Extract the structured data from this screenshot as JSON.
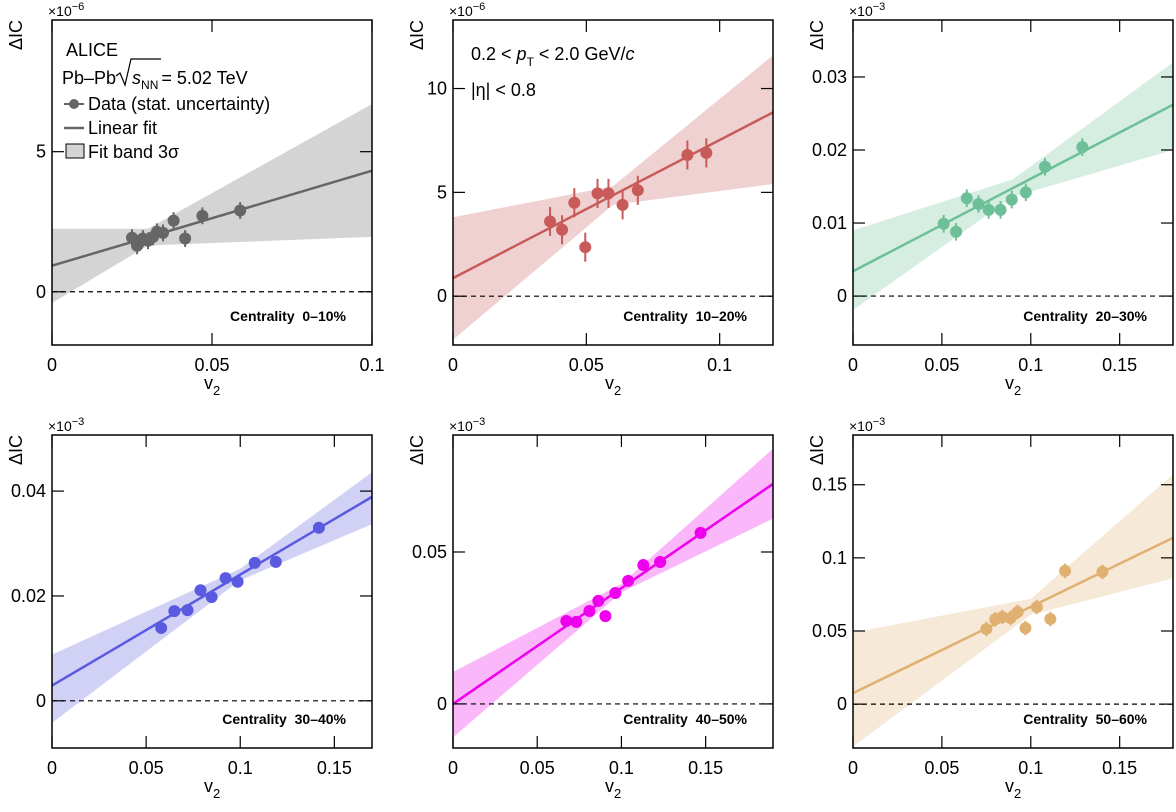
{
  "chart_data": [
    {
      "type": "scatter",
      "ylabel": "ΔIC",
      "xlabel": "v",
      "xlabel_sub": "2",
      "multiplier": {
        "base": "×10",
        "exponent": "−6"
      },
      "centrality": "Centrality  0–10%",
      "annotations": {
        "experiment": "ALICE",
        "system": "Pb–Pb",
        "energy_symbol": "s",
        "energy_sub": "NN",
        "energy_value": "= 5.02 TeV"
      },
      "xlim": [
        0,
        0.1
      ],
      "ylim": [
        -1.9,
        9.7
      ],
      "xticks": [
        0,
        0.05,
        0.1
      ],
      "yticks": [
        0,
        5
      ],
      "series": [
        {
          "name": "Data (stat. uncertainty)",
          "color": "#666666",
          "x": [
            0.025,
            0.0266,
            0.0284,
            0.03,
            0.0316,
            0.0328,
            0.0347,
            0.038,
            0.0416,
            0.047,
            0.0588
          ],
          "values": [
            1.93,
            1.64,
            1.9,
            1.82,
            1.96,
            2.14,
            2.1,
            2.54,
            1.9,
            2.71,
            2.9
          ],
          "errors": [
            0.3,
            0.3,
            0.3,
            0.3,
            0.3,
            0.3,
            0.3,
            0.3,
            0.3,
            0.3,
            0.3
          ]
        },
        {
          "name": "Linear fit",
          "color": "#666666",
          "x": [
            0,
            0.1
          ],
          "values": [
            0.93,
            4.32
          ]
        },
        {
          "name": "Fit band 3σ",
          "color": "#666666",
          "x": [
            0,
            0.03,
            0.1
          ],
          "lower": [
            -0.4,
            1.65,
            1.96
          ],
          "upper": [
            2.25,
            2.25,
            6.7
          ]
        }
      ]
    },
    {
      "type": "scatter",
      "ylabel": "ΔIC",
      "xlabel": "v",
      "xlabel_sub": "2",
      "multiplier": {
        "base": "×10",
        "exponent": "−6"
      },
      "centrality": "Centrality  10–20%",
      "annotations": {
        "pt_a": "0.2 < ",
        "pt_p": "p",
        "pt_sub": "T",
        "pt_b": " < 2.0 GeV/",
        "pt_c": "c",
        "eta": "|η| < 0.8"
      },
      "xlim": [
        0,
        0.12
      ],
      "ylim": [
        -2.35,
        13.3
      ],
      "xticks": [
        0,
        0.05,
        0.1
      ],
      "yticks": [
        0,
        5,
        10
      ],
      "series": [
        {
          "color": "#c85a5a",
          "x": [
            0.0364,
            0.0409,
            0.0455,
            0.0496,
            0.0542,
            0.0583,
            0.0636,
            0.0693,
            0.0879,
            0.095
          ],
          "values": [
            3.6,
            3.2,
            4.5,
            2.36,
            4.95,
            4.95,
            4.4,
            5.1,
            6.8,
            6.9
          ],
          "errors": [
            0.7,
            0.7,
            0.7,
            0.7,
            0.7,
            0.7,
            0.7,
            0.7,
            0.7,
            0.7
          ]
        },
        {
          "color": "#c85a5a",
          "x": [
            0,
            0.12
          ],
          "values": [
            0.87,
            8.85
          ]
        },
        {
          "color": "#c85a5a",
          "x": [
            0,
            0.06,
            0.12
          ],
          "lower": [
            -2.1,
            4.4,
            5.4
          ],
          "upper": [
            3.8,
            5.3,
            11.6
          ]
        }
      ]
    },
    {
      "type": "scatter",
      "ylabel": "ΔIC",
      "xlabel": "v",
      "xlabel_sub": "2",
      "multiplier": {
        "base": "×10",
        "exponent": "−3"
      },
      "centrality": "Centrality  20–30%",
      "xlim": [
        0,
        0.18
      ],
      "ylim": [
        -0.0067,
        0.0378
      ],
      "xticks": [
        0,
        0.05,
        0.1,
        0.15
      ],
      "yticks": [
        0,
        0.01,
        0.02,
        0.03
      ],
      "series": [
        {
          "color": "#6cbf96",
          "x": [
            0.051,
            0.058,
            0.064,
            0.0706,
            0.0763,
            0.083,
            0.0893,
            0.0972,
            0.108,
            0.129
          ],
          "values": [
            0.0099,
            0.0088,
            0.0134,
            0.0126,
            0.0118,
            0.0118,
            0.0132,
            0.0142,
            0.0177,
            0.0204
          ],
          "errors": [
            0.0012,
            0.0012,
            0.0012,
            0.0012,
            0.0012,
            0.0012,
            0.0012,
            0.0012,
            0.0012,
            0.0012
          ]
        },
        {
          "color": "#6cbf96",
          "x": [
            0,
            0.18
          ],
          "values": [
            0.0034,
            0.0262
          ]
        },
        {
          "color": "#6cbf96",
          "x": [
            0,
            0.09,
            0.18
          ],
          "lower": [
            -0.0019,
            0.0136,
            0.02
          ],
          "upper": [
            0.009,
            0.016,
            0.032
          ]
        }
      ]
    },
    {
      "type": "scatter",
      "ylabel": "ΔIC",
      "xlabel": "v",
      "xlabel_sub": "2",
      "multiplier": {
        "base": "×10",
        "exponent": "−3"
      },
      "centrality": "Centrality  30–40%",
      "xlim": [
        0,
        0.17
      ],
      "ylim": [
        -0.009,
        0.0507
      ],
      "xticks": [
        0,
        0.05,
        0.1,
        0.15
      ],
      "yticks": [
        0,
        0.02,
        0.04
      ],
      "series": [
        {
          "color": "#5a5ae0",
          "x": [
            0.058,
            0.065,
            0.072,
            0.0789,
            0.0848,
            0.0922,
            0.0986,
            0.1077,
            0.1189,
            0.1418
          ],
          "values": [
            0.0139,
            0.0171,
            0.0173,
            0.0211,
            0.0198,
            0.0234,
            0.0227,
            0.0263,
            0.0265,
            0.033
          ],
          "errors": [
            0.001,
            0.001,
            0.001,
            0.001,
            0.001,
            0.001,
            0.001,
            0.001,
            0.001,
            0.001
          ]
        },
        {
          "color": "#5a5ae0",
          "x": [
            0,
            0.17
          ],
          "values": [
            0.0029,
            0.0389
          ]
        },
        {
          "color": "#5a5ae0",
          "x": [
            0,
            0.1,
            0.17
          ],
          "lower": [
            -0.0042,
            0.023,
            0.0337
          ],
          "upper": [
            0.0088,
            0.0252,
            0.0436
          ]
        }
      ]
    },
    {
      "type": "scatter",
      "ylabel": "ΔIC",
      "xlabel": "v",
      "xlabel_sub": "2",
      "multiplier": {
        "base": "×10",
        "exponent": "−3"
      },
      "centrality": "Centrality  40–50%",
      "xlim": [
        0,
        0.19
      ],
      "ylim": [
        -0.0145,
        0.0885
      ],
      "xticks": [
        0,
        0.05,
        0.1,
        0.15
      ],
      "yticks": [
        0,
        0.05
      ],
      "series": [
        {
          "color": "#ee00ee",
          "x": [
            0.0673,
            0.0732,
            0.081,
            0.0863,
            0.0905,
            0.0964,
            0.104,
            0.113,
            0.123,
            0.147
          ],
          "values": [
            0.0273,
            0.027,
            0.0306,
            0.0339,
            0.0289,
            0.0365,
            0.0405,
            0.0457,
            0.0467,
            0.0563
          ],
          "errors": [
            0.0015,
            0.0015,
            0.0015,
            0.0015,
            0.0015,
            0.0015,
            0.0015,
            0.0015,
            0.0015,
            0.0015
          ]
        },
        {
          "color": "#ee00ee",
          "x": [
            0,
            0.19
          ],
          "values": [
            0,
            0.0724
          ]
        },
        {
          "color": "#ee00ee",
          "x": [
            0,
            0.1,
            0.19
          ],
          "lower": [
            -0.011,
            0.0367,
            0.061
          ],
          "upper": [
            0.0105,
            0.0395,
            0.084
          ]
        }
      ]
    },
    {
      "type": "scatter",
      "ylabel": "ΔIC",
      "xlabel": "v",
      "xlabel_sub": "2",
      "multiplier": {
        "base": "×10",
        "exponent": "−3"
      },
      "centrality": "Centrality  50–60%",
      "xlim": [
        0,
        0.18
      ],
      "ylim": [
        -0.03,
        0.184
      ],
      "xticks": [
        0,
        0.05,
        0.1,
        0.15
      ],
      "yticks": [
        0,
        0.05,
        0.1,
        0.15
      ],
      "series": [
        {
          "color": "#e0b070",
          "x": [
            0.075,
            0.08,
            0.084,
            0.0886,
            0.0926,
            0.097,
            0.1034,
            0.111,
            0.1193,
            0.1403
          ],
          "values": [
            0.0514,
            0.058,
            0.0596,
            0.0589,
            0.063,
            0.052,
            0.0664,
            0.0582,
            0.0911,
            0.0904
          ],
          "errors": [
            0.005,
            0.005,
            0.005,
            0.005,
            0.005,
            0.005,
            0.005,
            0.005,
            0.005,
            0.005
          ]
        },
        {
          "color": "#e0b070",
          "x": [
            0,
            0.18
          ],
          "values": [
            0.0075,
            0.1137
          ]
        },
        {
          "color": "#e0b070",
          "x": [
            0,
            0.1,
            0.18
          ],
          "lower": [
            -0.029,
            0.061,
            0.086
          ],
          "upper": [
            0.049,
            0.072,
            0.157
          ]
        }
      ]
    }
  ]
}
